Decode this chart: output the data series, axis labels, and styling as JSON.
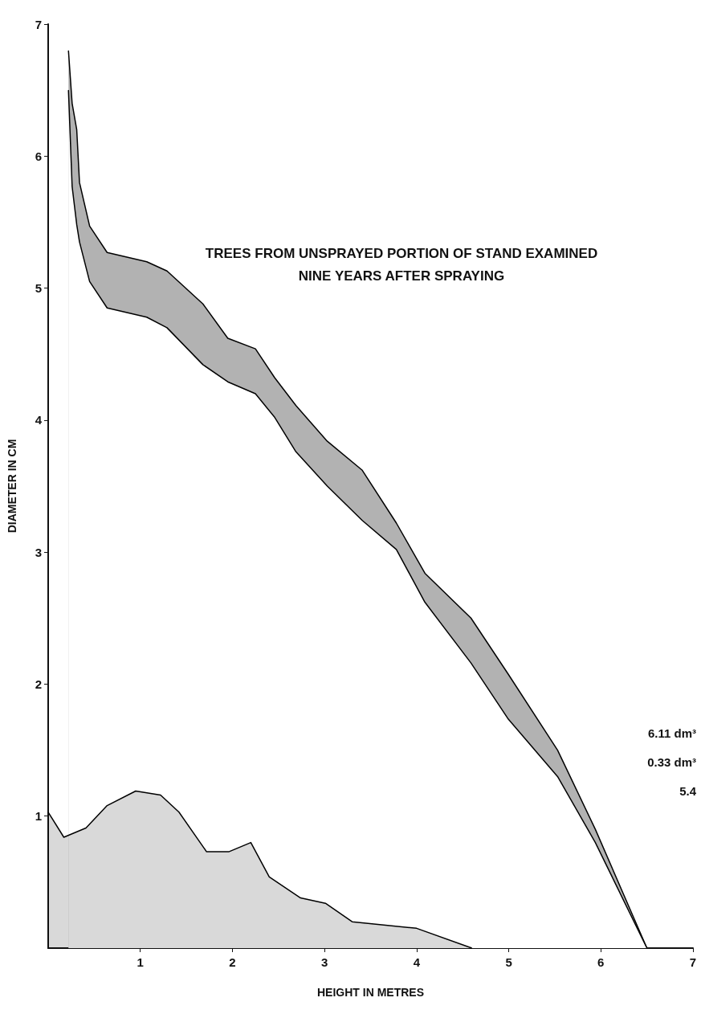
{
  "chart_data": {
    "type": "area",
    "title": "TREES FROM UNSPRAYED PORTION OF STAND EXAMINED\nNINE YEARS AFTER SPRAYING",
    "xlabel": "HEIGHT IN METRES",
    "ylabel": "DIAMETER IN CM",
    "series": [
      {
        "color": "#000000",
        "x": [
          0,
          0.17,
          0.41,
          0.64,
          0.95,
          1.22,
          1.42,
          1.72,
          1.96,
          2.2,
          2.4,
          2.74,
          3.01,
          3.3,
          4.0,
          4.6
        ],
        "values": [
          1.03,
          0.84,
          0.91,
          1.08,
          1.19,
          1.16,
          1.03,
          0.73,
          0.73,
          0.8,
          0.54,
          0.38,
          0.34,
          0.2,
          0.15,
          0
        ]
      },
      {
        "color": "#000000",
        "x": [
          0.22,
          0.26,
          0.31,
          0.34,
          0.45,
          0.64,
          1.07,
          1.29,
          1.68,
          1.95,
          2.25,
          2.46,
          2.69,
          3.03,
          3.41,
          3.78,
          4.09,
          4.59,
          4.99,
          5.53,
          5.94,
          6.5
        ],
        "values": [
          6.8,
          6.4,
          6.2,
          5.8,
          5.47,
          5.27,
          5.2,
          5.13,
          4.88,
          4.62,
          4.54,
          4.32,
          4.11,
          3.84,
          3.62,
          3.22,
          2.84,
          2.5,
          2.08,
          1.5,
          0.9,
          0
        ]
      },
      {
        "color": "#000000",
        "x": [
          0.22,
          0.26,
          0.31,
          0.34,
          0.45,
          0.64,
          1.07,
          1.29,
          1.68,
          1.95,
          2.25,
          2.46,
          2.69,
          3.03,
          3.41,
          3.78,
          4.09,
          4.59,
          4.99,
          5.53,
          5.94,
          6.5
        ],
        "values": [
          6.5,
          5.77,
          5.48,
          5.35,
          5.05,
          4.85,
          4.78,
          4.7,
          4.42,
          4.29,
          4.2,
          4.02,
          3.76,
          3.5,
          3.24,
          3.02,
          2.62,
          2.16,
          1.74,
          1.3,
          0.8,
          0
        ]
      }
    ],
    "xlim": [
      0,
      7
    ],
    "xticks": [
      1,
      2,
      3,
      4,
      5,
      6,
      7
    ],
    "ylim": [
      0,
      7
    ],
    "yticks": [
      1,
      2,
      3,
      4,
      5,
      6,
      7
    ],
    "grid": false,
    "line_style": "solid",
    "annotations": [
      "6.11 dm³",
      "0.33 dm³",
      "5.4"
    ]
  }
}
